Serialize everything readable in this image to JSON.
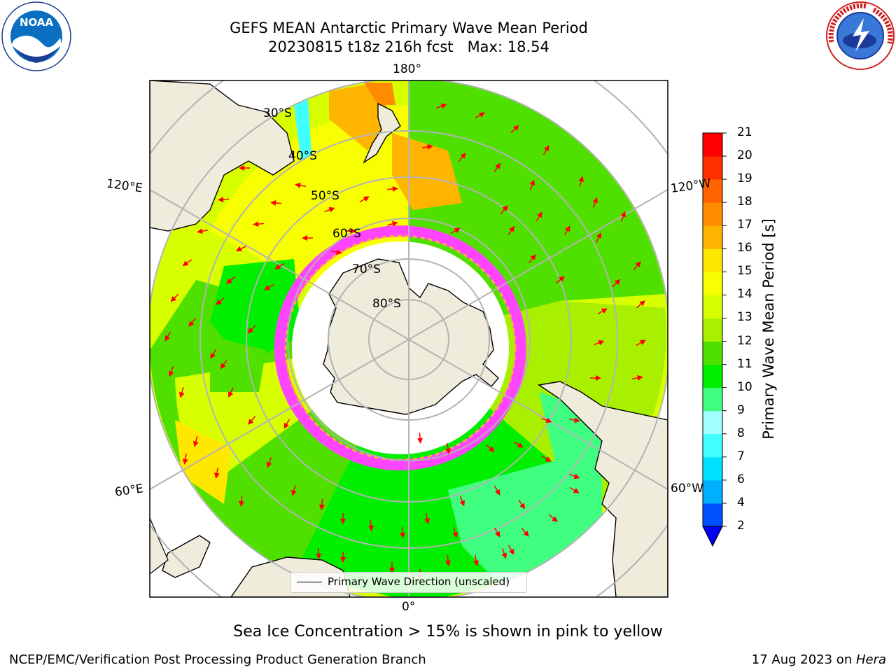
{
  "title": {
    "line1": "GEFS MEAN Antarctic Primary Wave Mean Period",
    "line2": "20230815 t18z 216h fcst   Max: 18.54"
  },
  "logos": {
    "left": "noaa-logo",
    "right": "nws-logo"
  },
  "map": {
    "projection": "south-polar-stereographic",
    "longitude_labels": {
      "top": "180°",
      "bottom": "0°",
      "left_upper": "120°E",
      "left_lower": "60°E",
      "right_upper": "120°W",
      "right_lower": "60°W"
    },
    "latitude_labels": [
      "30°S",
      "40°S",
      "50°S",
      "60°S",
      "70°S",
      "80°S"
    ],
    "colors": {
      "land": "#efecdc",
      "ocean_unmasked": "#ffffff",
      "graticule": "#b3b3b3",
      "arrow": "#ff0000",
      "sea_ice_pink": "#ff44ff",
      "sea_ice_orange": "#ffaa44"
    }
  },
  "legend": {
    "label": "Primary Wave Direction (unscaled)"
  },
  "colorbar": {
    "label": "Primary Wave Mean Period [s]",
    "ticks": [
      "2",
      "4",
      "6",
      "7",
      "8",
      "9",
      "10",
      "11",
      "12",
      "13",
      "14",
      "15",
      "16",
      "17",
      "18",
      "19",
      "20",
      "21"
    ],
    "colors": [
      "#0050ff",
      "#00b0ff",
      "#00e0ff",
      "#40ffff",
      "#a0ffff",
      "#40ff80",
      "#00ee00",
      "#50e000",
      "#a8f000",
      "#d8ff00",
      "#f8ff00",
      "#ffe800",
      "#ffb400",
      "#ff8c00",
      "#ff6400",
      "#ff3000",
      "#ff0000"
    ],
    "underflow_color": "#0000ee"
  },
  "subtitle": "Sea Ice Concentration > 15% is shown in pink to yellow",
  "footer": {
    "left": "NCEP/EMC/Verification Post Processing Product Generation Branch",
    "right_date": "17 Aug 2023 on ",
    "right_host": "Hera"
  }
}
